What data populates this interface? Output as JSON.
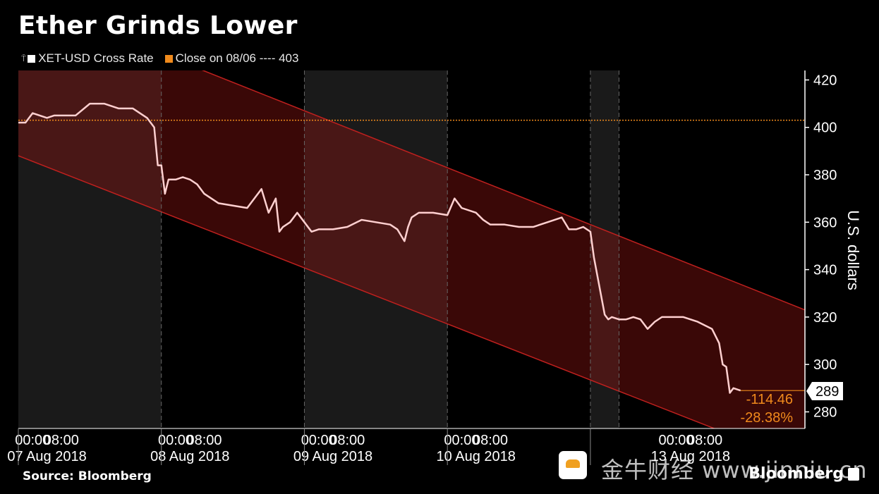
{
  "title": "Ether Grinds Lower",
  "source": "Source: Bloomberg",
  "brand": "Bloomberg",
  "watermark": "金牛财经 www.jinniu.cn",
  "legend": {
    "series_label": "XET-USD Cross Rate",
    "close_label": "Close on 08/06 ---- 403"
  },
  "colors": {
    "background": "#000000",
    "price_line": "#ffd0d0",
    "close_line": "#f08a1c",
    "channel": "#c0201e",
    "change_text": "#f08a1c"
  },
  "annotations": {
    "last_price": "289",
    "change_abs": "-114.46",
    "change_pct": "-28.38%"
  },
  "chart_data": {
    "type": "line",
    "title": "Ether Grinds Lower",
    "ylabel": "U.S. dollars",
    "ylim": [
      273,
      424
    ],
    "yticks": [
      "280",
      "300",
      "320",
      "340",
      "360",
      "380",
      "400",
      "420"
    ],
    "xtick_times": [
      "00:00",
      "08:00",
      "00:00",
      "08:00",
      "00:00",
      "08:00",
      "00:00",
      "08:00",
      "00:00",
      "08:00"
    ],
    "xtick_dates": [
      "07 Aug 2018",
      "08 Aug 2018",
      "09 Aug 2018",
      "10 Aug 2018",
      "13 Aug 2018"
    ],
    "grid": false,
    "legend_position": "top-left",
    "reference_line": {
      "name": "Close on 08/06",
      "value": 403
    },
    "channel": {
      "upper": [
        [
          0,
          455
        ],
        [
          110,
          323
        ]
      ],
      "lower": [
        [
          0,
          388
        ],
        [
          110,
          258
        ]
      ]
    },
    "x_hours_domain": [
      0,
      110
    ],
    "series": [
      {
        "name": "XET-USD Cross Rate",
        "x_hours": [
          0,
          1,
          2,
          3,
          4,
          5,
          6,
          8,
          10,
          12,
          14,
          16,
          17,
          18,
          19,
          19.5,
          20,
          20.5,
          21,
          22,
          23,
          24,
          25,
          26,
          27,
          28,
          30,
          32,
          34,
          35,
          36,
          36.5,
          37,
          38,
          39,
          40,
          41,
          42,
          44,
          46,
          48,
          50,
          52,
          53,
          54,
          54.5,
          55,
          56,
          58,
          60,
          61,
          62,
          64,
          65,
          66,
          68,
          70,
          72,
          74,
          76,
          77,
          78,
          79,
          80,
          80.5,
          82,
          82.5,
          83,
          84,
          85,
          86,
          87,
          88,
          89,
          90,
          91,
          93,
          95,
          97,
          98,
          98.5,
          99,
          99.5,
          100,
          101
        ],
        "values": [
          402,
          402,
          406,
          405,
          404,
          405,
          405,
          405,
          410,
          410,
          408,
          408,
          406,
          404,
          400,
          384,
          384,
          372,
          378,
          378,
          379,
          378,
          376,
          372,
          370,
          368,
          367,
          366,
          374,
          364,
          370,
          356,
          358,
          360,
          364,
          360,
          356,
          357,
          357,
          358,
          361,
          360,
          359,
          357,
          352,
          358,
          362,
          364,
          364,
          363,
          370,
          366,
          364,
          361,
          359,
          359,
          358,
          358,
          360,
          362,
          357,
          357,
          358,
          356,
          345,
          321,
          319,
          320,
          319,
          319,
          320,
          319,
          315,
          318,
          320,
          320,
          320,
          318,
          315,
          309,
          300,
          299,
          288,
          290,
          289
        ]
      }
    ]
  }
}
